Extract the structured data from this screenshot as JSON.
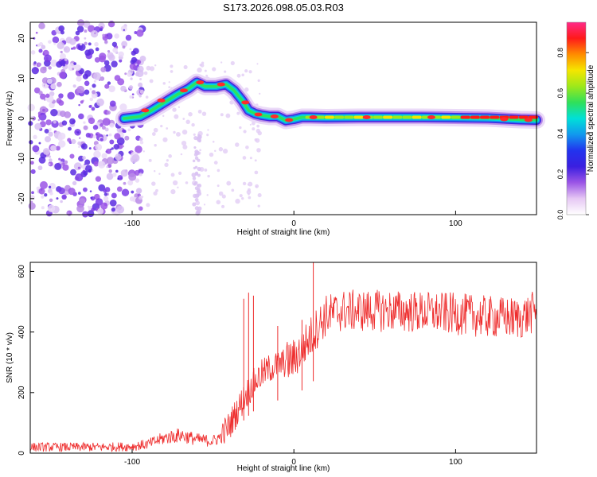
{
  "page_title": "S173.2026.098.05.03.R03",
  "chart_data": [
    {
      "type": "heatmap",
      "title": "S173.2026.098.05.03.R03",
      "xlabel": "Height of straight line (km)",
      "ylabel": "Frequency (Hz)",
      "xlim": [
        -163,
        150
      ],
      "ylim": [
        -24,
        24
      ],
      "xticks": [
        -100,
        0,
        100
      ],
      "yticks": [
        -20,
        -10,
        0,
        10,
        20
      ],
      "ridge_x": [
        -105,
        -95,
        -88,
        -80,
        -72,
        -65,
        -60,
        -55,
        -48,
        -42,
        -37,
        -32,
        -28,
        -24,
        -20,
        -15,
        -10,
        -5,
        0,
        5,
        10,
        20,
        40,
        60,
        80,
        100,
        120,
        140,
        150
      ],
      "ridge_freq": [
        0,
        0.5,
        2,
        4,
        6,
        7.5,
        9,
        8,
        8,
        8.5,
        7,
        4.5,
        2,
        1.2,
        0.8,
        0.5,
        0.5,
        -0.5,
        -0.2,
        0.3,
        0.3,
        0.2,
        0.3,
        0.3,
        0.3,
        0.2,
        0.1,
        -0.3,
        -0.4
      ],
      "colorbar": {
        "label": "Normalized spectral amplitude",
        "range": [
          0,
          0.95
        ],
        "ticks": [
          "0.0",
          "0.2",
          "0.4",
          "0.6",
          "0.8"
        ],
        "tick_values": [
          0,
          0.2,
          0.4,
          0.6,
          0.8
        ],
        "colors": [
          "#ffffff",
          "#e6c8f4",
          "#9b55e6",
          "#3a1fe0",
          "#2233ee",
          "#1199ee",
          "#00e0d8",
          "#2fe05a",
          "#9ee81a",
          "#f5e600",
          "#ff8c00",
          "#ff1a1a",
          "#ff2a88"
        ]
      }
    },
    {
      "type": "line",
      "xlabel": "Height of straight line (km)",
      "ylabel": "SNR (10 * v/v)",
      "xlim": [
        -163,
        150
      ],
      "ylim": [
        0,
        630
      ],
      "xticks": [
        -100,
        0,
        100
      ],
      "yticks": [
        0,
        200,
        400,
        600
      ],
      "series": [
        {
          "name": "SNR",
          "color": "#ee2d2d",
          "x": [
            -163,
            -140,
            -120,
            -100,
            -90,
            -80,
            -70,
            -60,
            -50,
            -45,
            -40,
            -35,
            -30,
            -25,
            -20,
            -15,
            -10,
            -5,
            0,
            5,
            10,
            15,
            20,
            30,
            40,
            60,
            80,
            100,
            120,
            140,
            150
          ],
          "values": [
            20,
            20,
            20,
            22,
            30,
            50,
            60,
            45,
            40,
            55,
            90,
            140,
            190,
            230,
            260,
            280,
            290,
            300,
            310,
            345,
            380,
            420,
            455,
            470,
            470,
            470,
            465,
            460,
            450,
            445,
            470
          ]
        }
      ],
      "spikes": [
        {
          "x": -31,
          "value": 510
        },
        {
          "x": -28,
          "value": 530
        },
        {
          "x": -25,
          "value": 520
        },
        {
          "x": -10,
          "value": 420
        },
        {
          "x": 5,
          "value": 440
        },
        {
          "x": 12,
          "value": 630
        }
      ]
    }
  ]
}
